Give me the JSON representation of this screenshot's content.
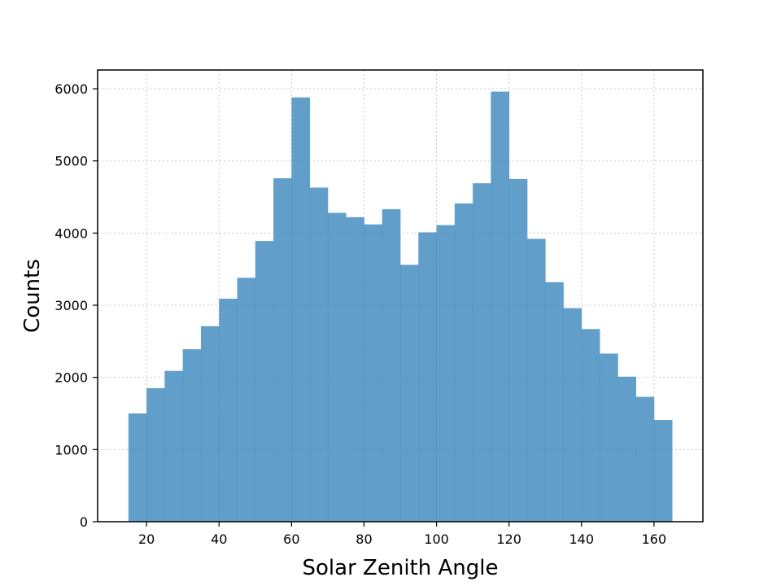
{
  "chart_data": {
    "type": "histogram",
    "title": "",
    "xlabel": "Solar Zenith Angle",
    "ylabel": "Counts",
    "xlim": [
      6.5,
      173.5
    ],
    "ylim": [
      0,
      6260
    ],
    "xticks": [
      20,
      40,
      60,
      80,
      100,
      120,
      140,
      160
    ],
    "yticks": [
      0,
      1000,
      2000,
      3000,
      4000,
      5000,
      6000
    ],
    "grid": true,
    "bar_color": "#4a90c2",
    "bin_start": 15,
    "bin_width": 5,
    "values": [
      1500,
      1850,
      2090,
      2390,
      2710,
      3090,
      3380,
      3890,
      4760,
      5880,
      4630,
      4280,
      4220,
      4120,
      4330,
      3560,
      4010,
      4110,
      4410,
      4690,
      5960,
      4750,
      3920,
      3320,
      2960,
      2670,
      2330,
      2010,
      1730,
      1410
    ]
  }
}
